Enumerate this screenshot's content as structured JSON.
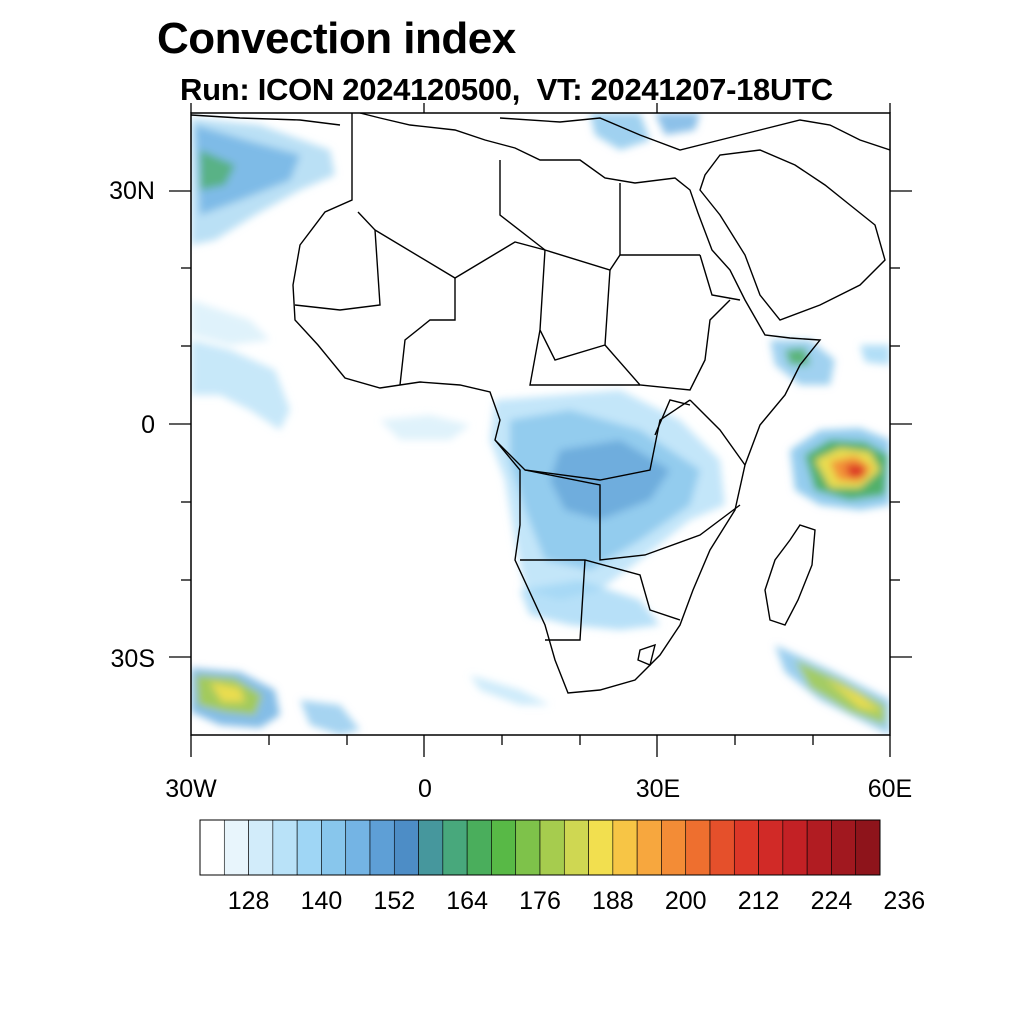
{
  "title": "Convection index",
  "subtitle": "Run: ICON 2024120500,  VT: 20241207-18UTC",
  "lat_labels": [
    "30N",
    "0",
    "30S"
  ],
  "lon_labels": [
    "30W",
    "0",
    "30E",
    "60E"
  ],
  "colorbar": {
    "labels": [
      "128",
      "140",
      "152",
      "164",
      "176",
      "188",
      "200",
      "212",
      "224",
      "236"
    ],
    "colors": [
      "#ffffff",
      "#e8f5fc",
      "#d2ecfa",
      "#b9e2f8",
      "#9fd6f5",
      "#88c6ec",
      "#74b4e4",
      "#5e9fd6",
      "#4d8dc6",
      "#46979d",
      "#48a87c",
      "#4aae5c",
      "#58b946",
      "#7ec24a",
      "#a6cc4e",
      "#cfd752",
      "#f2df4f",
      "#f7c545",
      "#f7a73e",
      "#f38c36",
      "#ee6f2f",
      "#e5502b",
      "#dc3728",
      "#d12a27",
      "#c32125",
      "#b11c22",
      "#a1181f",
      "#8e141b"
    ]
  },
  "map": {
    "projection": "cylindrical equidistant",
    "lon_range": [
      -30,
      60
    ],
    "lat_range": [
      -40,
      40
    ]
  }
}
